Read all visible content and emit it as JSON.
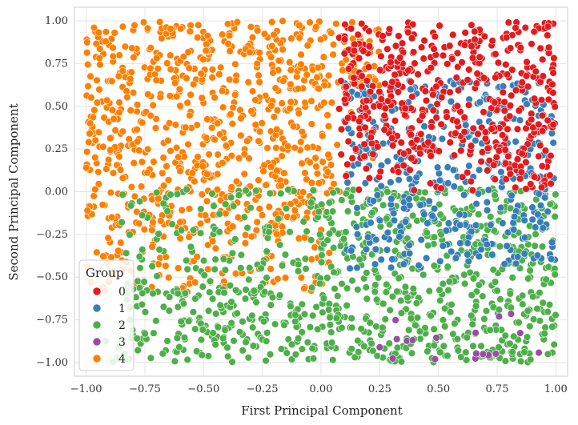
{
  "chart_data": {
    "type": "scatter",
    "title": "",
    "xlabel": "First Principal Component",
    "ylabel": "Second Principal Component",
    "xlim": [
      -1.05,
      1.05
    ],
    "ylim": [
      -1.08,
      1.08
    ],
    "xticks": [
      -1.0,
      -0.75,
      -0.5,
      -0.25,
      0.0,
      0.25,
      0.5,
      0.75,
      1.0
    ],
    "xtick_labels": [
      "−1.00",
      "−0.75",
      "−0.50",
      "−0.25",
      "0.00",
      "0.25",
      "0.50",
      "0.75",
      "1.00"
    ],
    "yticks": [
      -1.0,
      -0.75,
      -0.5,
      -0.25,
      0.0,
      0.25,
      0.5,
      0.75,
      1.0
    ],
    "ytick_labels": [
      "−1.00",
      "−0.75",
      "−0.50",
      "−0.25",
      "0.00",
      "0.25",
      "0.50",
      "0.75",
      "1.00"
    ],
    "grid": true,
    "background": "#ffffff",
    "grid_color": "#e4e4e4",
    "legend": {
      "title": "Group",
      "placement": "lower-left",
      "entries": [
        "0",
        "1",
        "2",
        "3",
        "4"
      ]
    },
    "series": [
      {
        "name": "0",
        "color": "#e41a1c",
        "region": {
          "x": [
            0.05,
            1.0
          ],
          "y": [
            0.0,
            1.0
          ]
        },
        "approx_points": 520
      },
      {
        "name": "1",
        "color": "#377eb8",
        "region": {
          "x": [
            0.05,
            1.0
          ],
          "y": [
            -0.45,
            0.65
          ]
        },
        "approx_points": 380
      },
      {
        "name": "2",
        "color": "#4daf4a",
        "region": {
          "x": [
            -0.95,
            1.0
          ],
          "y": [
            -1.0,
            0.05
          ]
        },
        "approx_points": 900
      },
      {
        "name": "3",
        "color": "#984ea3",
        "region": {
          "x": [
            0.2,
            1.0
          ],
          "y": [
            -1.0,
            -0.7
          ]
        },
        "approx_points": 18
      },
      {
        "name": "4",
        "color": "#ff7f00",
        "region": {
          "x": [
            -1.0,
            0.25
          ],
          "y": [
            -0.6,
            1.0
          ]
        },
        "approx_points": 900
      }
    ]
  }
}
